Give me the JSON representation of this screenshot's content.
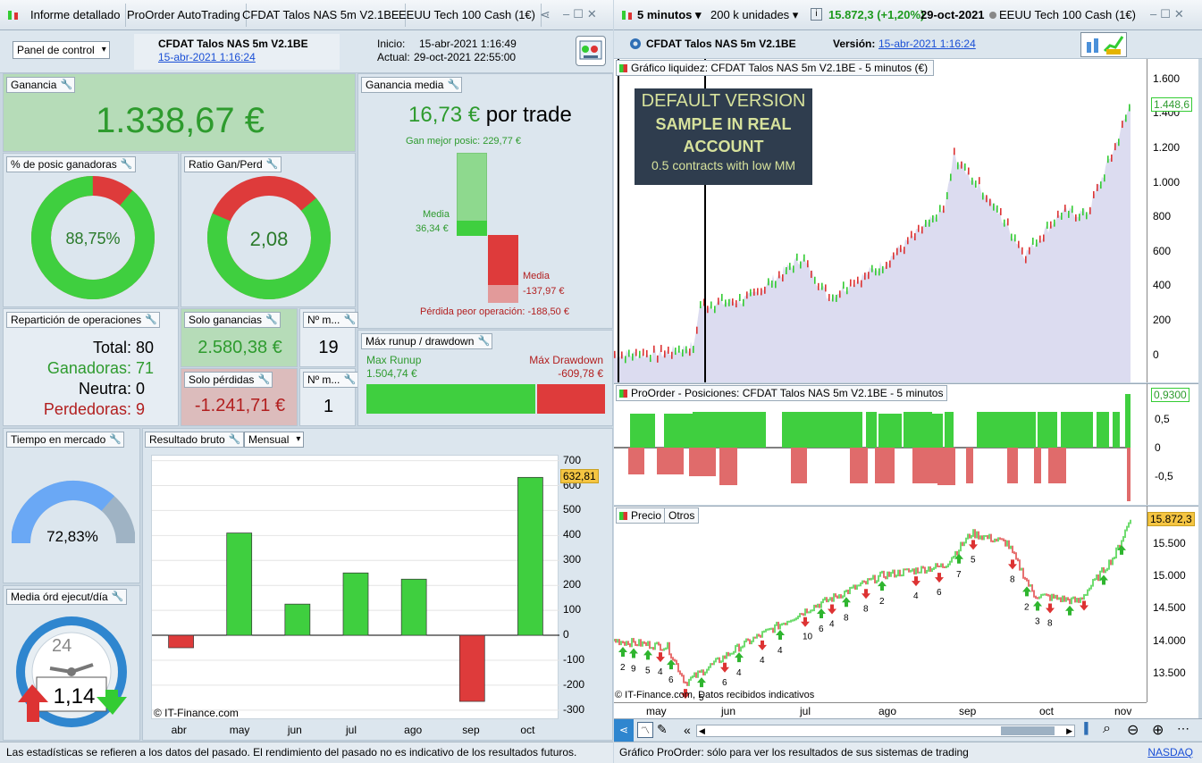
{
  "left_toolbar": {
    "tabs": [
      "Informe detallado",
      "ProOrder AutoTrading",
      "CFDAT Talos NAS 5m V2.1BE",
      "EEUU Tech 100 Cash (1€)"
    ]
  },
  "right_toolbar": {
    "timeframe": "5 minutos",
    "units": "200 k unidades",
    "price": "15.872,3 (+1,20%)",
    "date": "29-oct-2021",
    "instrument": "EEUU Tech 100 Cash (1€)"
  },
  "header": {
    "panel_select": "Panel de control",
    "system_name": "CFDAT Talos NAS 5m V2.1BE",
    "system_date": "15-abr-2021 1:16:24",
    "inicio_label": "Inicio:",
    "inicio": "15-abr-2021 1:16:49",
    "actual_label": "Actual:",
    "actual": "29-oct-2021 22:55:00"
  },
  "ganancia": {
    "title": "Ganancia",
    "value": "1.338,67 €"
  },
  "ganancia_media": {
    "title": "Ganancia media",
    "value": "16,73 €",
    "suffix": "por trade",
    "best": "Gan mejor posic: 229,77 €",
    "media_g_label": "Media",
    "media_g": "36,34 €",
    "media_p_label": "Media",
    "media_p": "-137,97 €",
    "worst": "Pérdida peor operación: -188,50 €"
  },
  "pct_ganadoras": {
    "title": "% de posic ganadoras",
    "value": "88,75%",
    "fraction": 0.8875
  },
  "ratio": {
    "title": "Ratio Gan/Perd",
    "value": "2,08",
    "fraction": 0.675
  },
  "reparticion": {
    "title": "Repartición de operaciones",
    "total": "Total: 80",
    "ganadoras": "Ganadoras: 71",
    "neutra": "Neutra: 0",
    "perdedoras": "Perdedoras: 9"
  },
  "solo_ganancias": {
    "title": "Solo ganancias",
    "value": "2.580,38 €"
  },
  "solo_perdidas": {
    "title": "Solo pérdidas",
    "value": "-1.241,71 €"
  },
  "num1": {
    "title": "Nº m...",
    "value": "19"
  },
  "num2": {
    "title": "Nº m...",
    "value": "1"
  },
  "runup": {
    "title": "Máx runup / drawdown",
    "runup_label": "Max Runup",
    "runup": "1.504,74 €",
    "dd_label": "Máx Drawdown",
    "dd": "-609,78 €"
  },
  "tiempo": {
    "title": "Tiempo en mercado",
    "value": "72,83%",
    "fraction": 0.7283
  },
  "media_ord": {
    "title": "Media órd ejecut/día",
    "value": "1,14",
    "clock": "24"
  },
  "resultado": {
    "title": "Resultado bruto",
    "select": "Mensual",
    "watermark": "© IT-Finance.com",
    "last": "632,81"
  },
  "equity_title": "Gráfico liquidez: CFDAT Talos NAS 5m V2.1BE - 5 minutos (€)",
  "version_label": "Versión:",
  "version": "15-abr-2021 1:16:24",
  "banner": {
    "l1": "DEFAULT VERSION",
    "l2": "SAMPLE IN REAL",
    "l3": "ACCOUNT",
    "l4": "0.5 contracts with low MM"
  },
  "equity_last": "1.448,6",
  "positions_title": "ProOrder - Posiciones: CFDAT Talos NAS 5m V2.1BE - 5 minutos",
  "positions_last": "0,9300",
  "price_tabs": [
    "Precio",
    "Otros"
  ],
  "price_last": "15.872,3",
  "price_footer": "© IT-Finance.com, Datos recibidos indicativos",
  "time_axis": [
    "may",
    "jun",
    "jul",
    "ago",
    "sep",
    "oct",
    "nov"
  ],
  "equity_axis": [
    "1.600",
    "1.400",
    "1.200",
    "1.000",
    "800",
    "600",
    "400",
    "200",
    "0"
  ],
  "pos_axis": [
    "0,5",
    "0",
    "-0,5"
  ],
  "price_axis": [
    "15.500",
    "15.000",
    "14.500",
    "14.000",
    "13.500"
  ],
  "arrow_labels": [
    "2",
    "9",
    "5",
    "4",
    "6",
    "4",
    "5",
    "6",
    "4",
    "4",
    "4",
    "10",
    "6",
    "4",
    "8",
    "8",
    "2",
    "4",
    "6",
    "7",
    "5",
    "8",
    "2",
    "3",
    "8"
  ],
  "status_left": "Las estadísticas se refieren a los datos del pasado. El rendimiento del pasado no es indicativo de los resultados futuros.",
  "status_right": "Gráfico ProOrder: sólo para ver los resultados de sus sistemas de trading",
  "status_nasdaq": "NASDAQ",
  "colors": {
    "green": "#3fcf3f",
    "red": "#de3b3b",
    "panel": "#dce6ee"
  },
  "chart_data": {
    "type": "bar",
    "categories": [
      "abr",
      "may",
      "jun",
      "jul",
      "ago",
      "sep",
      "oct"
    ],
    "values": [
      -50,
      410,
      125,
      250,
      225,
      -265,
      633
    ],
    "ylim": [
      -340,
      720
    ],
    "ticks": [
      700,
      600,
      500,
      400,
      300,
      200,
      100,
      0,
      -100,
      -200,
      -300
    ]
  }
}
